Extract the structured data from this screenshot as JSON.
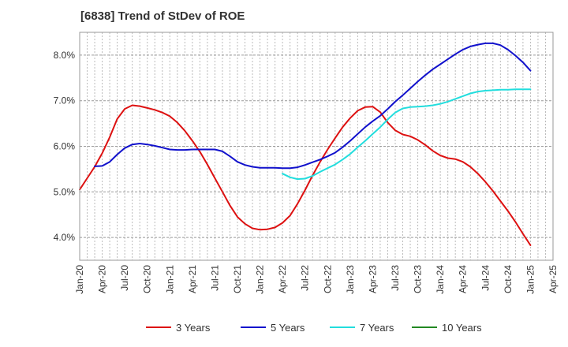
{
  "chart_data": {
    "type": "line",
    "title": "[6838]  Trend of StDev of ROE",
    "xlabel": "",
    "ylabel": "",
    "x_start": "2020-01",
    "x_end": "2025-04",
    "x_tick_labels": [
      "Jan-20",
      "Apr-20",
      "Jul-20",
      "Oct-20",
      "Jan-21",
      "Apr-21",
      "Jul-21",
      "Oct-21",
      "Jan-22",
      "Apr-22",
      "Jul-22",
      "Oct-22",
      "Jan-23",
      "Apr-23",
      "Jul-23",
      "Oct-23",
      "Jan-24",
      "Apr-24",
      "Jul-24",
      "Oct-24",
      "Jan-25",
      "Apr-25"
    ],
    "ylim": [
      3.5,
      8.5
    ],
    "y_ticks": [
      4.0,
      5.0,
      6.0,
      7.0,
      8.0
    ],
    "y_tick_labels": [
      "4.0%",
      "5.0%",
      "6.0%",
      "7.0%",
      "8.0%"
    ],
    "grid": "horizontal-dashed",
    "legend_position": "bottom",
    "series": [
      {
        "name": "3 Years",
        "color": "#dd1111",
        "x": [
          "2020-01",
          "2020-02",
          "2020-03",
          "2020-04",
          "2020-05",
          "2020-06",
          "2020-07",
          "2020-08",
          "2020-09",
          "2020-10",
          "2020-11",
          "2020-12",
          "2021-01",
          "2021-02",
          "2021-03",
          "2021-04",
          "2021-05",
          "2021-06",
          "2021-07",
          "2021-08",
          "2021-09",
          "2021-10",
          "2021-11",
          "2021-12",
          "2022-01",
          "2022-02",
          "2022-03",
          "2022-04",
          "2022-05",
          "2022-06",
          "2022-07",
          "2022-08",
          "2022-09",
          "2022-10",
          "2022-11",
          "2022-12",
          "2023-01",
          "2023-02",
          "2023-03",
          "2023-04",
          "2023-05",
          "2023-06",
          "2023-07",
          "2023-08",
          "2023-09",
          "2023-10",
          "2023-11",
          "2023-12",
          "2024-01",
          "2024-02",
          "2024-03",
          "2024-04",
          "2024-05",
          "2024-06",
          "2024-07",
          "2024-08",
          "2024-09",
          "2024-10",
          "2024-11",
          "2024-12",
          "2025-01"
        ],
        "values": [
          5.05,
          5.3,
          5.55,
          5.85,
          6.2,
          6.6,
          6.82,
          6.9,
          6.88,
          6.84,
          6.8,
          6.74,
          6.66,
          6.52,
          6.34,
          6.12,
          5.88,
          5.6,
          5.3,
          5.0,
          4.7,
          4.45,
          4.3,
          4.2,
          4.17,
          4.18,
          4.22,
          4.32,
          4.48,
          4.74,
          5.04,
          5.36,
          5.66,
          5.93,
          6.18,
          6.42,
          6.62,
          6.78,
          6.86,
          6.87,
          6.75,
          6.52,
          6.35,
          6.26,
          6.22,
          6.14,
          6.03,
          5.9,
          5.8,
          5.74,
          5.72,
          5.66,
          5.55,
          5.4,
          5.22,
          5.02,
          4.8,
          4.58,
          4.34,
          4.08,
          3.83
        ]
      },
      {
        "name": "5 Years",
        "color": "#1111cc",
        "x": [
          "2020-01",
          "2020-02",
          "2020-03",
          "2020-04",
          "2020-05",
          "2020-06",
          "2020-07",
          "2020-08",
          "2020-09",
          "2020-10",
          "2020-11",
          "2020-12",
          "2021-01",
          "2021-02",
          "2021-03",
          "2021-04",
          "2021-05",
          "2021-06",
          "2021-07",
          "2021-08",
          "2021-09",
          "2021-10",
          "2021-11",
          "2021-12",
          "2022-01",
          "2022-02",
          "2022-03",
          "2022-04",
          "2022-05",
          "2022-06",
          "2022-07",
          "2022-08",
          "2022-09",
          "2022-10",
          "2022-11",
          "2022-12",
          "2023-01",
          "2023-02",
          "2023-03",
          "2023-04",
          "2023-05",
          "2023-06",
          "2023-07",
          "2023-08",
          "2023-09",
          "2023-10",
          "2023-11",
          "2023-12",
          "2024-01",
          "2024-02",
          "2024-03",
          "2024-04",
          "2024-05",
          "2024-06",
          "2024-07",
          "2024-08",
          "2024-09",
          "2024-10",
          "2024-11",
          "2024-12",
          "2025-01"
        ],
        "values": [
          null,
          null,
          5.56,
          5.57,
          5.66,
          5.82,
          5.96,
          6.04,
          6.06,
          6.04,
          6.01,
          5.97,
          5.93,
          5.92,
          5.92,
          5.93,
          5.93,
          5.93,
          5.93,
          5.89,
          5.78,
          5.66,
          5.59,
          5.55,
          5.53,
          5.53,
          5.53,
          5.52,
          5.52,
          5.54,
          5.59,
          5.65,
          5.71,
          5.78,
          5.86,
          5.98,
          6.12,
          6.27,
          6.42,
          6.55,
          6.67,
          6.82,
          6.98,
          7.12,
          7.27,
          7.42,
          7.56,
          7.69,
          7.8,
          7.91,
          8.02,
          8.12,
          8.19,
          8.23,
          8.26,
          8.26,
          8.22,
          8.12,
          7.99,
          7.84,
          7.66
        ]
      },
      {
        "name": "7 Years",
        "color": "#22dddd",
        "x": [
          "2022-04",
          "2022-05",
          "2022-06",
          "2022-07",
          "2022-08",
          "2022-09",
          "2022-10",
          "2022-11",
          "2022-12",
          "2023-01",
          "2023-02",
          "2023-03",
          "2023-04",
          "2023-05",
          "2023-06",
          "2023-07",
          "2023-08",
          "2023-09",
          "2023-10",
          "2023-11",
          "2023-12",
          "2024-01",
          "2024-02",
          "2024-03",
          "2024-04",
          "2024-05",
          "2024-06",
          "2024-07",
          "2024-08",
          "2024-09",
          "2024-10",
          "2024-11",
          "2024-12",
          "2025-01"
        ],
        "values": [
          5.4,
          5.32,
          5.28,
          5.29,
          5.35,
          5.44,
          5.52,
          5.6,
          5.71,
          5.83,
          5.98,
          6.12,
          6.27,
          6.42,
          6.59,
          6.74,
          6.83,
          6.86,
          6.87,
          6.88,
          6.9,
          6.93,
          6.98,
          7.04,
          7.1,
          7.16,
          7.2,
          7.22,
          7.23,
          7.24,
          7.24,
          7.25,
          7.25,
          7.25
        ]
      },
      {
        "name": "10 Years",
        "color": "#228822",
        "x": [],
        "values": []
      }
    ]
  }
}
